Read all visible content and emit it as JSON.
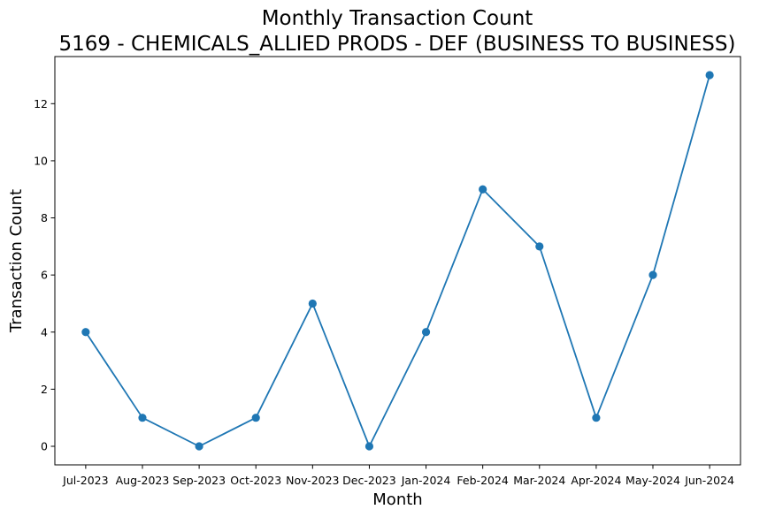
{
  "chart_data": {
    "type": "line",
    "title": "Monthly Transaction Count",
    "subtitle": "5169 - CHEMICALS_ALLIED PRODS - DEF (BUSINESS TO BUSINESS)",
    "xlabel": "Month",
    "ylabel": "Transaction Count",
    "categories": [
      "Jul-2023",
      "Aug-2023",
      "Sep-2023",
      "Oct-2023",
      "Nov-2023",
      "Dec-2023",
      "Jan-2024",
      "Feb-2024",
      "Mar-2024",
      "Apr-2024",
      "May-2024",
      "Jun-2024"
    ],
    "values": [
      4,
      1,
      0,
      1,
      5,
      0,
      4,
      9,
      7,
      1,
      6,
      13
    ],
    "yticks": [
      0,
      2,
      4,
      6,
      8,
      10,
      12
    ],
    "ylim": [
      -0.65,
      13.65
    ],
    "grid": false,
    "series_color": "#1f77b4",
    "marker": "circle"
  }
}
